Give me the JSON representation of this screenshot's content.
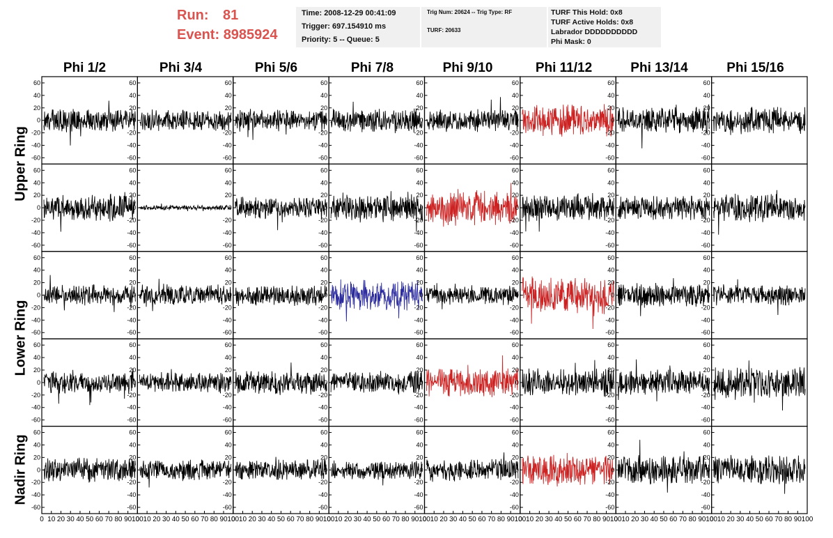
{
  "header": {
    "run_label": "Run:",
    "run_value": "81",
    "event_label": "Event:",
    "event_value": "8985924",
    "time": "Time: 2008-12-29 00:41:09",
    "trigger": "Trigger: 697.154910 ms",
    "priority": "Priority: 5 -- Queue: 5",
    "trig_num": "Trig Num: 20624 -- Trig Type: RF",
    "turf": "TURF: 20633",
    "turf_this_hold": "TURF This Hold: 0x8",
    "turf_active_holds": "TURF Active Holds: 0x8",
    "labrador": "Labrador DDDDDDDDDD",
    "phi_mask": "Phi Mask: 0"
  },
  "columns": [
    "Phi 1/2",
    "Phi 3/4",
    "Phi 5/6",
    "Phi 7/8",
    "Phi 9/10",
    "Phi 11/12",
    "Phi 13/14",
    "Phi 15/16"
  ],
  "ring_labels": [
    "Upper Ring",
    "Lower Ring",
    "Nadir Ring"
  ],
  "colors": {
    "default": "#000000",
    "red": "#cc2222",
    "blue": "#2b2b9e",
    "run_text": "#d9534f",
    "info_bg": "#f0f0f0"
  },
  "chart_data": {
    "type": "line",
    "xlim": [
      0,
      100
    ],
    "ylim": [
      -70,
      70
    ],
    "y_ticks": [
      -60,
      -40,
      -20,
      0,
      20,
      40,
      60
    ],
    "x_ticks": [
      0,
      10,
      20,
      30,
      40,
      50,
      60,
      70,
      80,
      90,
      100
    ],
    "x_tick_labels": [
      "0",
      "10",
      "20",
      "30",
      "40",
      "50",
      "60",
      "70",
      "80",
      "90",
      "100"
    ],
    "panel_rows": 5,
    "panel_cols": 8,
    "panels": [
      {
        "row": 0,
        "col": 0,
        "amplitude": 15,
        "color": "default"
      },
      {
        "row": 0,
        "col": 1,
        "amplitude": 13,
        "color": "default"
      },
      {
        "row": 0,
        "col": 2,
        "amplitude": 14,
        "color": "default"
      },
      {
        "row": 0,
        "col": 3,
        "amplitude": 15,
        "color": "default"
      },
      {
        "row": 0,
        "col": 4,
        "amplitude": 14,
        "color": "default"
      },
      {
        "row": 0,
        "col": 5,
        "amplitude": 20,
        "color": "red"
      },
      {
        "row": 0,
        "col": 6,
        "amplitude": 17,
        "color": "default"
      },
      {
        "row": 0,
        "col": 7,
        "amplitude": 17,
        "color": "default"
      },
      {
        "row": 1,
        "col": 0,
        "amplitude": 17,
        "color": "default"
      },
      {
        "row": 1,
        "col": 1,
        "amplitude": 3,
        "color": "default"
      },
      {
        "row": 1,
        "col": 2,
        "amplitude": 14,
        "color": "default"
      },
      {
        "row": 1,
        "col": 3,
        "amplitude": 18,
        "color": "default"
      },
      {
        "row": 1,
        "col": 4,
        "amplitude": 22,
        "color": "red"
      },
      {
        "row": 1,
        "col": 5,
        "amplitude": 17,
        "color": "default"
      },
      {
        "row": 1,
        "col": 6,
        "amplitude": 15,
        "color": "default"
      },
      {
        "row": 1,
        "col": 7,
        "amplitude": 18,
        "color": "default"
      },
      {
        "row": 2,
        "col": 0,
        "amplitude": 13,
        "color": "default"
      },
      {
        "row": 2,
        "col": 1,
        "amplitude": 13,
        "color": "default"
      },
      {
        "row": 2,
        "col": 2,
        "amplitude": 13,
        "color": "default"
      },
      {
        "row": 2,
        "col": 3,
        "amplitude": 20,
        "color": "blue"
      },
      {
        "row": 2,
        "col": 4,
        "amplitude": 12,
        "color": "default"
      },
      {
        "row": 2,
        "col": 5,
        "amplitude": 23,
        "color": "red"
      },
      {
        "row": 2,
        "col": 6,
        "amplitude": 15,
        "color": "default"
      },
      {
        "row": 2,
        "col": 7,
        "amplitude": 13,
        "color": "default"
      },
      {
        "row": 3,
        "col": 0,
        "amplitude": 14,
        "color": "default"
      },
      {
        "row": 3,
        "col": 1,
        "amplitude": 13,
        "color": "default"
      },
      {
        "row": 3,
        "col": 2,
        "amplitude": 15,
        "color": "default"
      },
      {
        "row": 3,
        "col": 3,
        "amplitude": 14,
        "color": "default"
      },
      {
        "row": 3,
        "col": 4,
        "amplitude": 18,
        "color": "red"
      },
      {
        "row": 3,
        "col": 5,
        "amplitude": 18,
        "color": "default"
      },
      {
        "row": 3,
        "col": 6,
        "amplitude": 16,
        "color": "default"
      },
      {
        "row": 3,
        "col": 7,
        "amplitude": 20,
        "color": "default"
      },
      {
        "row": 4,
        "col": 0,
        "amplitude": 15,
        "color": "default"
      },
      {
        "row": 4,
        "col": 1,
        "amplitude": 13,
        "color": "default"
      },
      {
        "row": 4,
        "col": 2,
        "amplitude": 13,
        "color": "default"
      },
      {
        "row": 4,
        "col": 3,
        "amplitude": 12,
        "color": "default"
      },
      {
        "row": 4,
        "col": 4,
        "amplitude": 14,
        "color": "default"
      },
      {
        "row": 4,
        "col": 5,
        "amplitude": 20,
        "color": "red"
      },
      {
        "row": 4,
        "col": 6,
        "amplitude": 18,
        "color": "default"
      },
      {
        "row": 4,
        "col": 7,
        "amplitude": 18,
        "color": "default"
      }
    ]
  }
}
